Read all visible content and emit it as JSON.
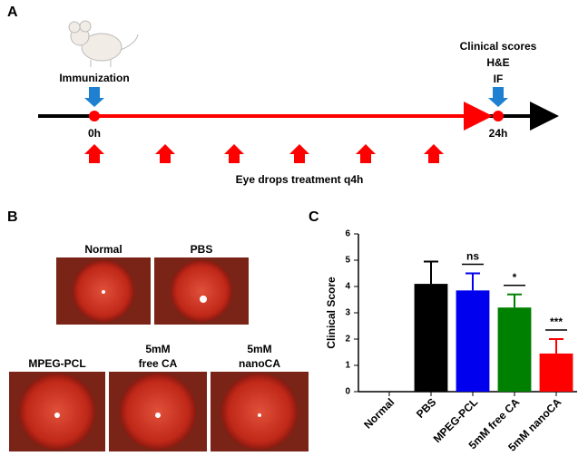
{
  "panel_a": {
    "letter": "A",
    "start_label": "Immunization",
    "start_time": "0h",
    "end_labels": [
      "Clinical scores",
      "H&E",
      "IF"
    ],
    "end_time": "24h",
    "treatment": "Eye drops treatment q4h"
  },
  "panel_b": {
    "letter": "B",
    "images": [
      {
        "label": [
          "Normal"
        ]
      },
      {
        "label": [
          "PBS"
        ]
      },
      {
        "label": [
          "MPEG-PCL"
        ]
      },
      {
        "label": [
          "5mM",
          "free CA"
        ]
      },
      {
        "label": [
          "5mM",
          "nanoCA"
        ]
      }
    ]
  },
  "chart_data": {
    "type": "bar",
    "letter": "C",
    "ylabel": "Clinical Score",
    "categories": [
      "Normal",
      "PBS",
      "MPEG-PCL",
      "5mM free CA",
      "5mM nanoCA"
    ],
    "values": [
      0,
      4.1,
      3.85,
      3.2,
      1.45
    ],
    "errors": [
      0,
      0.85,
      0.65,
      0.5,
      0.55
    ],
    "colors": [
      "#000000",
      "#000000",
      "#0000ee",
      "#008000",
      "#ff0000"
    ],
    "significance": [
      null,
      null,
      "ns",
      "*",
      "***"
    ],
    "ylim": [
      0,
      6
    ],
    "yticks": [
      0,
      1,
      2,
      3,
      4,
      5,
      6
    ]
  }
}
